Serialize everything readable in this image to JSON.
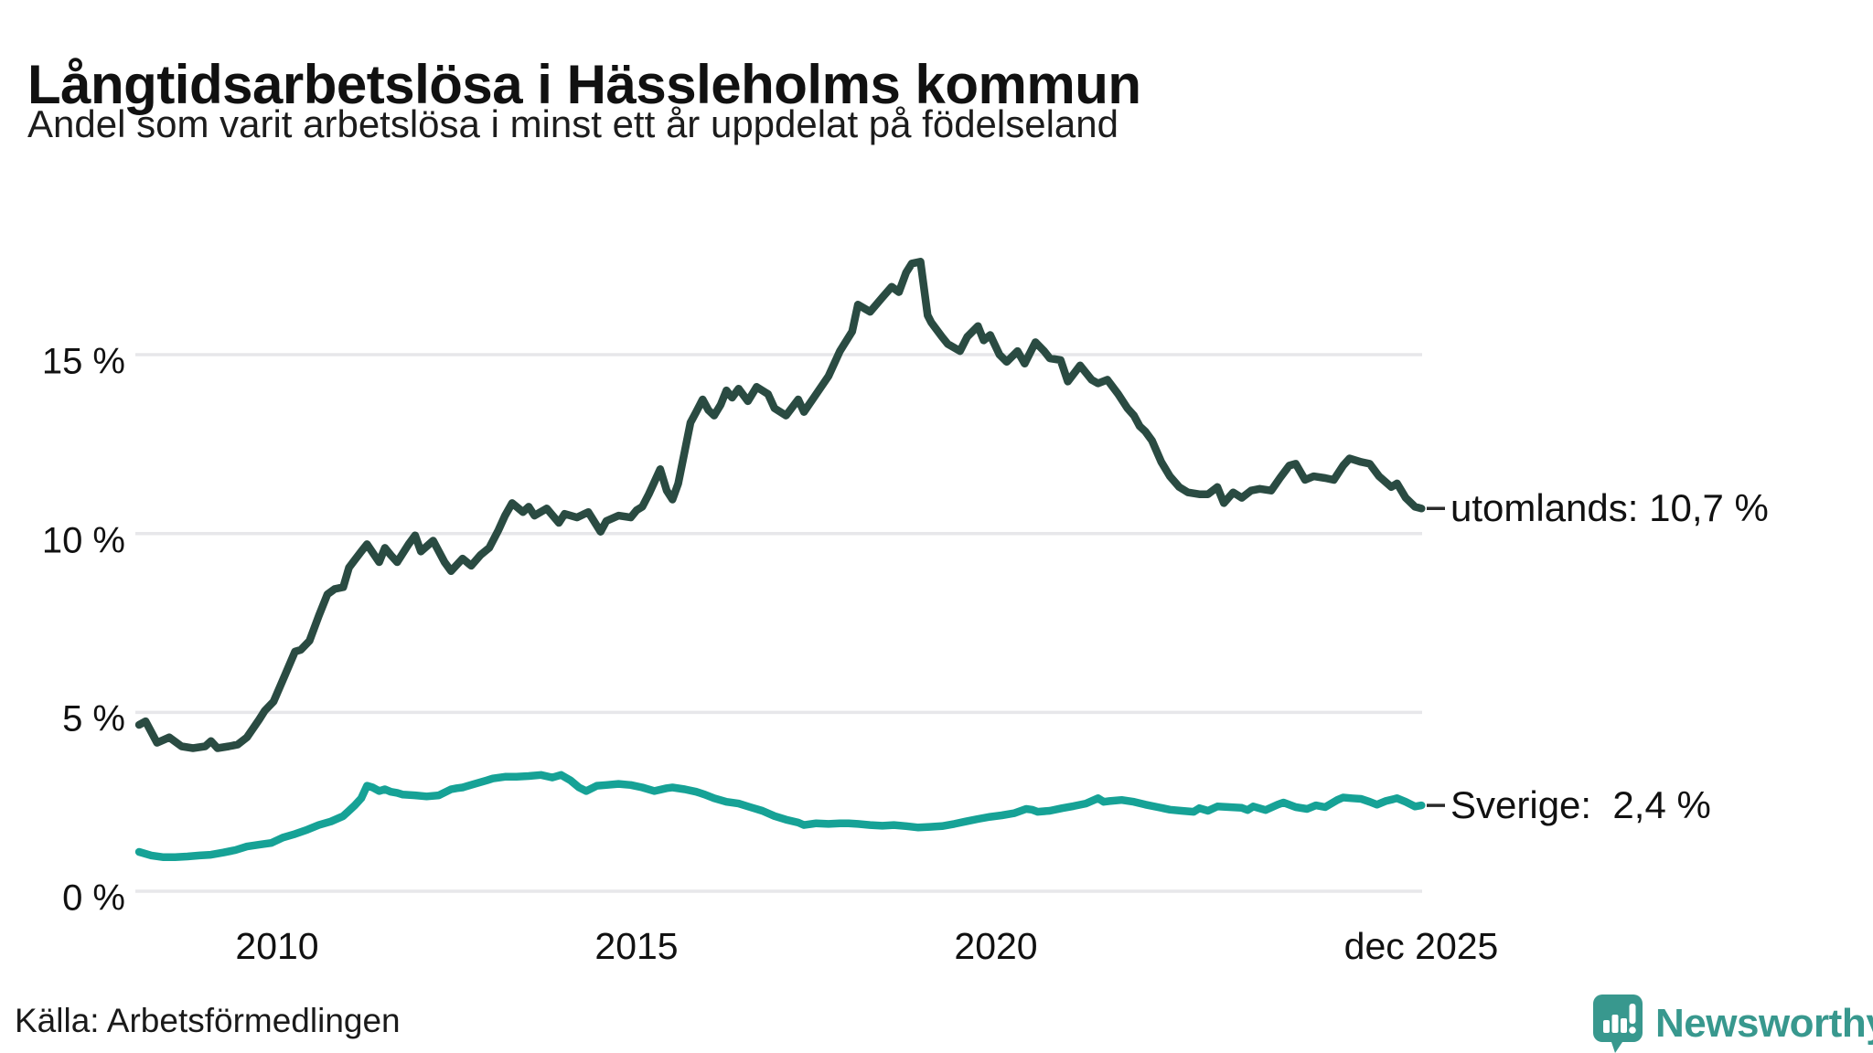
{
  "header": {
    "title": "Långtidsarbetslösa i Hässleholms kommun",
    "subtitle": "Andel som varit arbetslösa i minst ett år uppdelat på födelseland"
  },
  "footer": {
    "source": "Källa: Arbetsförmedlingen",
    "brand_name": "Newsworthy",
    "brand_color": "#38988e"
  },
  "colors": {
    "utomlands_line": "#2a4b42",
    "sverige_line": "#16a296",
    "gridline": "#e7e7ea",
    "text": "#111111",
    "label_dash": "#2b2b2b"
  },
  "chart_data": {
    "type": "line",
    "title": "Långtidsarbetslösa i Hässleholms kommun",
    "subtitle": "Andel som varit arbetslösa i minst ett år uppdelat på födelseland",
    "unit": "%",
    "grid": true,
    "x_axis": {
      "ticks": [
        "2010",
        "2015",
        "2020",
        "dec 2025"
      ],
      "tick_years": [
        2010,
        2015,
        2020,
        2025.92
      ],
      "range_years": [
        2008.08,
        2025.92
      ]
    },
    "y_axis": {
      "ticks": [
        "0 %",
        "5 %",
        "10 %",
        "15 %"
      ],
      "tick_values": [
        0,
        5,
        10,
        15
      ],
      "range": [
        0,
        18
      ]
    },
    "series": [
      {
        "name": "utomlands",
        "end_label": "utomlands: 10,7 %",
        "last_value_text": "10,7 %",
        "last_value": 10.7,
        "color": "#2a4b42",
        "points": [
          [
            2008.08,
            4.65
          ],
          [
            2008.17,
            4.75
          ],
          [
            2008.33,
            4.15
          ],
          [
            2008.5,
            4.3
          ],
          [
            2008.67,
            4.05
          ],
          [
            2008.83,
            4.0
          ],
          [
            2009.0,
            4.05
          ],
          [
            2009.08,
            4.2
          ],
          [
            2009.17,
            4.0
          ],
          [
            2009.33,
            4.05
          ],
          [
            2009.45,
            4.1
          ],
          [
            2009.58,
            4.3
          ],
          [
            2009.75,
            4.8
          ],
          [
            2009.83,
            5.05
          ],
          [
            2009.95,
            5.3
          ],
          [
            2010.1,
            6.0
          ],
          [
            2010.25,
            6.7
          ],
          [
            2010.33,
            6.75
          ],
          [
            2010.45,
            7.0
          ],
          [
            2010.58,
            7.7
          ],
          [
            2010.7,
            8.3
          ],
          [
            2010.8,
            8.45
          ],
          [
            2010.92,
            8.5
          ],
          [
            2011.0,
            9.05
          ],
          [
            2011.17,
            9.5
          ],
          [
            2011.25,
            9.7
          ],
          [
            2011.42,
            9.2
          ],
          [
            2011.5,
            9.6
          ],
          [
            2011.58,
            9.4
          ],
          [
            2011.67,
            9.2
          ],
          [
            2011.83,
            9.7
          ],
          [
            2011.92,
            9.95
          ],
          [
            2012.0,
            9.5
          ],
          [
            2012.17,
            9.8
          ],
          [
            2012.33,
            9.2
          ],
          [
            2012.42,
            8.95
          ],
          [
            2012.58,
            9.3
          ],
          [
            2012.7,
            9.1
          ],
          [
            2012.83,
            9.4
          ],
          [
            2012.95,
            9.6
          ],
          [
            2013.08,
            10.1
          ],
          [
            2013.17,
            10.5
          ],
          [
            2013.27,
            10.85
          ],
          [
            2013.42,
            10.6
          ],
          [
            2013.5,
            10.75
          ],
          [
            2013.58,
            10.5
          ],
          [
            2013.75,
            10.7
          ],
          [
            2013.92,
            10.3
          ],
          [
            2014.0,
            10.55
          ],
          [
            2014.17,
            10.45
          ],
          [
            2014.33,
            10.6
          ],
          [
            2014.5,
            10.05
          ],
          [
            2014.58,
            10.35
          ],
          [
            2014.75,
            10.5
          ],
          [
            2014.92,
            10.45
          ],
          [
            2015.0,
            10.65
          ],
          [
            2015.08,
            10.75
          ],
          [
            2015.17,
            11.1
          ],
          [
            2015.33,
            11.8
          ],
          [
            2015.42,
            11.2
          ],
          [
            2015.5,
            10.95
          ],
          [
            2015.58,
            11.4
          ],
          [
            2015.67,
            12.3
          ],
          [
            2015.75,
            13.1
          ],
          [
            2015.83,
            13.4
          ],
          [
            2015.92,
            13.75
          ],
          [
            2016.0,
            13.45
          ],
          [
            2016.08,
            13.3
          ],
          [
            2016.17,
            13.6
          ],
          [
            2016.25,
            14.0
          ],
          [
            2016.33,
            13.8
          ],
          [
            2016.42,
            14.05
          ],
          [
            2016.55,
            13.7
          ],
          [
            2016.67,
            14.1
          ],
          [
            2016.75,
            14.0
          ],
          [
            2016.83,
            13.9
          ],
          [
            2016.92,
            13.5
          ],
          [
            2017.08,
            13.3
          ],
          [
            2017.25,
            13.75
          ],
          [
            2017.33,
            13.4
          ],
          [
            2017.5,
            13.9
          ],
          [
            2017.67,
            14.4
          ],
          [
            2017.83,
            15.1
          ],
          [
            2018.0,
            15.65
          ],
          [
            2018.08,
            16.4
          ],
          [
            2018.25,
            16.2
          ],
          [
            2018.42,
            16.6
          ],
          [
            2018.55,
            16.9
          ],
          [
            2018.65,
            16.75
          ],
          [
            2018.75,
            17.3
          ],
          [
            2018.83,
            17.55
          ],
          [
            2018.95,
            17.6
          ],
          [
            2019.05,
            16.1
          ],
          [
            2019.1,
            15.9
          ],
          [
            2019.25,
            15.5
          ],
          [
            2019.33,
            15.3
          ],
          [
            2019.5,
            15.1
          ],
          [
            2019.6,
            15.5
          ],
          [
            2019.75,
            15.8
          ],
          [
            2019.83,
            15.4
          ],
          [
            2019.92,
            15.55
          ],
          [
            2020.05,
            15.0
          ],
          [
            2020.15,
            14.8
          ],
          [
            2020.3,
            15.1
          ],
          [
            2020.4,
            14.75
          ],
          [
            2020.55,
            15.35
          ],
          [
            2020.67,
            15.1
          ],
          [
            2020.75,
            14.9
          ],
          [
            2020.9,
            14.85
          ],
          [
            2021.0,
            14.25
          ],
          [
            2021.17,
            14.7
          ],
          [
            2021.33,
            14.3
          ],
          [
            2021.42,
            14.2
          ],
          [
            2021.55,
            14.3
          ],
          [
            2021.7,
            13.9
          ],
          [
            2021.83,
            13.5
          ],
          [
            2021.92,
            13.3
          ],
          [
            2022.0,
            13.0
          ],
          [
            2022.08,
            12.85
          ],
          [
            2022.17,
            12.6
          ],
          [
            2022.3,
            12.0
          ],
          [
            2022.42,
            11.6
          ],
          [
            2022.55,
            11.3
          ],
          [
            2022.67,
            11.15
          ],
          [
            2022.83,
            11.1
          ],
          [
            2022.95,
            11.1
          ],
          [
            2023.08,
            11.3
          ],
          [
            2023.17,
            10.85
          ],
          [
            2023.3,
            11.15
          ],
          [
            2023.42,
            11.0
          ],
          [
            2023.55,
            11.2
          ],
          [
            2023.67,
            11.25
          ],
          [
            2023.83,
            11.2
          ],
          [
            2023.95,
            11.55
          ],
          [
            2024.08,
            11.9
          ],
          [
            2024.17,
            11.95
          ],
          [
            2024.3,
            11.5
          ],
          [
            2024.42,
            11.6
          ],
          [
            2024.58,
            11.55
          ],
          [
            2024.7,
            11.5
          ],
          [
            2024.83,
            11.9
          ],
          [
            2024.92,
            12.1
          ],
          [
            2025.08,
            12.0
          ],
          [
            2025.2,
            11.95
          ],
          [
            2025.33,
            11.6
          ],
          [
            2025.5,
            11.3
          ],
          [
            2025.58,
            11.4
          ],
          [
            2025.7,
            11.0
          ],
          [
            2025.83,
            10.75
          ],
          [
            2025.92,
            10.7
          ]
        ]
      },
      {
        "name": "Sverige",
        "end_label": "Sverige:  2,4 %",
        "last_value_text": "2,4 %",
        "last_value": 2.4,
        "color": "#16a296",
        "points": [
          [
            2008.08,
            1.1
          ],
          [
            2008.25,
            1.0
          ],
          [
            2008.42,
            0.95
          ],
          [
            2008.58,
            0.95
          ],
          [
            2008.75,
            0.97
          ],
          [
            2008.92,
            1.0
          ],
          [
            2009.08,
            1.02
          ],
          [
            2009.25,
            1.08
          ],
          [
            2009.42,
            1.15
          ],
          [
            2009.58,
            1.25
          ],
          [
            2009.75,
            1.3
          ],
          [
            2009.92,
            1.35
          ],
          [
            2010.08,
            1.5
          ],
          [
            2010.25,
            1.6
          ],
          [
            2010.42,
            1.72
          ],
          [
            2010.58,
            1.85
          ],
          [
            2010.75,
            1.95
          ],
          [
            2010.92,
            2.1
          ],
          [
            2011.0,
            2.25
          ],
          [
            2011.08,
            2.4
          ],
          [
            2011.17,
            2.6
          ],
          [
            2011.25,
            2.95
          ],
          [
            2011.33,
            2.9
          ],
          [
            2011.42,
            2.8
          ],
          [
            2011.5,
            2.85
          ],
          [
            2011.58,
            2.78
          ],
          [
            2011.67,
            2.75
          ],
          [
            2011.75,
            2.7
          ],
          [
            2011.92,
            2.68
          ],
          [
            2012.08,
            2.65
          ],
          [
            2012.25,
            2.68
          ],
          [
            2012.42,
            2.85
          ],
          [
            2012.5,
            2.88
          ],
          [
            2012.58,
            2.9
          ],
          [
            2012.75,
            3.0
          ],
          [
            2012.92,
            3.1
          ],
          [
            2013.0,
            3.15
          ],
          [
            2013.17,
            3.2
          ],
          [
            2013.33,
            3.2
          ],
          [
            2013.5,
            3.22
          ],
          [
            2013.67,
            3.25
          ],
          [
            2013.83,
            3.18
          ],
          [
            2013.95,
            3.25
          ],
          [
            2014.08,
            3.1
          ],
          [
            2014.2,
            2.9
          ],
          [
            2014.3,
            2.8
          ],
          [
            2014.45,
            2.95
          ],
          [
            2014.58,
            2.97
          ],
          [
            2014.75,
            3.0
          ],
          [
            2014.92,
            2.97
          ],
          [
            2015.08,
            2.9
          ],
          [
            2015.25,
            2.8
          ],
          [
            2015.42,
            2.88
          ],
          [
            2015.5,
            2.9
          ],
          [
            2015.67,
            2.85
          ],
          [
            2015.83,
            2.78
          ],
          [
            2015.95,
            2.7
          ],
          [
            2016.08,
            2.6
          ],
          [
            2016.25,
            2.5
          ],
          [
            2016.42,
            2.45
          ],
          [
            2016.58,
            2.35
          ],
          [
            2016.75,
            2.25
          ],
          [
            2016.92,
            2.1
          ],
          [
            2017.08,
            2.0
          ],
          [
            2017.25,
            1.92
          ],
          [
            2017.33,
            1.85
          ],
          [
            2017.5,
            1.9
          ],
          [
            2017.67,
            1.88
          ],
          [
            2017.83,
            1.9
          ],
          [
            2017.95,
            1.9
          ],
          [
            2018.08,
            1.88
          ],
          [
            2018.25,
            1.85
          ],
          [
            2018.42,
            1.83
          ],
          [
            2018.58,
            1.85
          ],
          [
            2018.75,
            1.82
          ],
          [
            2018.92,
            1.78
          ],
          [
            2019.08,
            1.8
          ],
          [
            2019.25,
            1.82
          ],
          [
            2019.42,
            1.88
          ],
          [
            2019.58,
            1.95
          ],
          [
            2019.75,
            2.02
          ],
          [
            2019.92,
            2.08
          ],
          [
            2020.08,
            2.12
          ],
          [
            2020.25,
            2.18
          ],
          [
            2020.42,
            2.3
          ],
          [
            2020.5,
            2.28
          ],
          [
            2020.58,
            2.22
          ],
          [
            2020.75,
            2.25
          ],
          [
            2020.92,
            2.32
          ],
          [
            2021.08,
            2.38
          ],
          [
            2021.25,
            2.45
          ],
          [
            2021.42,
            2.6
          ],
          [
            2021.5,
            2.5
          ],
          [
            2021.58,
            2.52
          ],
          [
            2021.75,
            2.55
          ],
          [
            2021.92,
            2.5
          ],
          [
            2022.08,
            2.42
          ],
          [
            2022.25,
            2.35
          ],
          [
            2022.42,
            2.28
          ],
          [
            2022.58,
            2.25
          ],
          [
            2022.75,
            2.22
          ],
          [
            2022.83,
            2.32
          ],
          [
            2022.95,
            2.25
          ],
          [
            2023.08,
            2.37
          ],
          [
            2023.25,
            2.35
          ],
          [
            2023.42,
            2.33
          ],
          [
            2023.5,
            2.27
          ],
          [
            2023.58,
            2.37
          ],
          [
            2023.75,
            2.27
          ],
          [
            2023.92,
            2.42
          ],
          [
            2024.0,
            2.48
          ],
          [
            2024.17,
            2.35
          ],
          [
            2024.33,
            2.3
          ],
          [
            2024.45,
            2.4
          ],
          [
            2024.58,
            2.35
          ],
          [
            2024.75,
            2.55
          ],
          [
            2024.83,
            2.62
          ],
          [
            2024.95,
            2.6
          ],
          [
            2025.08,
            2.58
          ],
          [
            2025.2,
            2.5
          ],
          [
            2025.3,
            2.42
          ],
          [
            2025.42,
            2.52
          ],
          [
            2025.58,
            2.6
          ],
          [
            2025.7,
            2.5
          ],
          [
            2025.83,
            2.37
          ],
          [
            2025.92,
            2.4
          ]
        ]
      }
    ],
    "legend_position": "end-of-line-labels"
  }
}
